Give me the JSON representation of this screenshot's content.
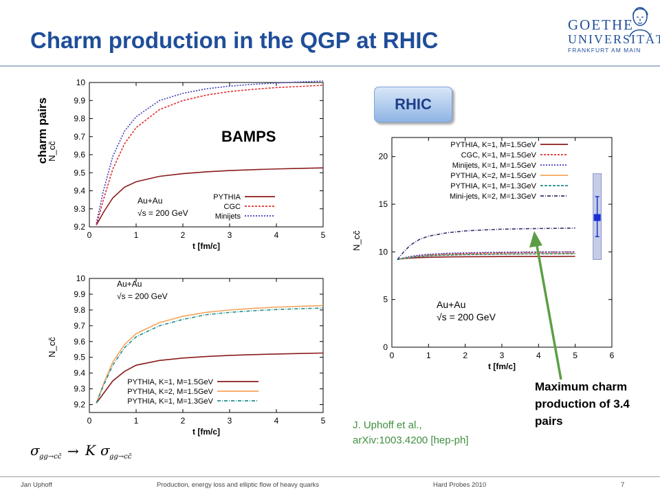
{
  "slide": {
    "title": "Charm production in the QGP at RHIC",
    "logo": {
      "line1": "GOETHE",
      "line2": "UNIVERSITÄT",
      "line3": "FRANKFURT AM MAIN"
    },
    "side_label": "charm pairs",
    "bamps_label": "BAMPS",
    "rhic_badge": "RHIC",
    "annotation": "Maximum charm production of 3.4 pairs",
    "reference_line1": "J. Uphoff et al.,",
    "reference_line2": "arXiv:1003.4200 [hep-ph]",
    "footer": {
      "author": "Jan Uphoff",
      "talk": "Production, energy loss and elliptic flow of heavy quarks",
      "conference": "Hard Probes 2010",
      "page": "7"
    },
    "colors": {
      "title": "#1f4e99",
      "reference": "#3f8f3f",
      "arrow": "#5c9e45"
    }
  },
  "chart_data": [
    {
      "type": "line",
      "xlabel": "t [fm/c]",
      "ylabel": "N_cc̄",
      "xlim": [
        0,
        5
      ],
      "ylim": [
        9.2,
        10
      ],
      "xticks": [
        "0",
        "1",
        "2",
        "3",
        "4",
        "5"
      ],
      "yticks": [
        "9.2",
        "9.3",
        "9.4",
        "9.5",
        "9.6",
        "9.7",
        "9.8",
        "9.9",
        "10"
      ],
      "annotations": [
        "Au+Au",
        "√s = 200 GeV"
      ],
      "legend_position": "bottom-right",
      "x": [
        0.15,
        0.3,
        0.5,
        0.75,
        1.0,
        1.5,
        2.0,
        2.5,
        3.0,
        3.5,
        4.0,
        4.5,
        5.0
      ],
      "series": [
        {
          "name": "PYTHIA",
          "color": "#8b1a1a",
          "dash": "",
          "values": [
            9.21,
            9.28,
            9.36,
            9.42,
            9.45,
            9.48,
            9.495,
            9.505,
            9.512,
            9.517,
            9.521,
            9.524,
            9.527
          ]
        },
        {
          "name": "CGC",
          "color": "#e32b2b",
          "dash": "3,2",
          "values": [
            9.21,
            9.35,
            9.52,
            9.66,
            9.75,
            9.85,
            9.9,
            9.93,
            9.95,
            9.962,
            9.972,
            9.978,
            9.985
          ]
        },
        {
          "name": "Minijets",
          "color": "#3a3ab8",
          "dash": "2,2",
          "values": [
            9.22,
            9.4,
            9.59,
            9.73,
            9.81,
            9.9,
            9.94,
            9.965,
            9.98,
            9.99,
            9.997,
            10.003,
            10.008
          ]
        }
      ]
    },
    {
      "type": "line",
      "xlabel": "t [fm/c]",
      "ylabel": "N_cc̄",
      "xlim": [
        0,
        5
      ],
      "ylim": [
        9.15,
        10
      ],
      "xticks": [
        "0",
        "1",
        "2",
        "3",
        "4",
        "5"
      ],
      "yticks": [
        "9.2",
        "9.3",
        "9.4",
        "9.5",
        "9.6",
        "9.7",
        "9.8",
        "9.9",
        "10"
      ],
      "annotations": [
        "Au+Au",
        "√s = 200 GeV"
      ],
      "legend_position": "bottom-right",
      "x": [
        0.15,
        0.3,
        0.5,
        0.75,
        1.0,
        1.5,
        2.0,
        2.5,
        3.0,
        3.5,
        4.0,
        4.5,
        5.0
      ],
      "series": [
        {
          "name": "PYTHIA, K=1, M=1.5GeV",
          "color": "#8b1a1a",
          "dash": "",
          "values": [
            9.21,
            9.27,
            9.35,
            9.41,
            9.45,
            9.48,
            9.495,
            9.505,
            9.512,
            9.517,
            9.521,
            9.524,
            9.527
          ]
        },
        {
          "name": "PYTHIA, K=2, M=1.5GeV",
          "color": "#f5a35a",
          "dash": "",
          "values": [
            9.21,
            9.33,
            9.47,
            9.58,
            9.65,
            9.72,
            9.76,
            9.785,
            9.8,
            9.81,
            9.818,
            9.823,
            9.828
          ]
        },
        {
          "name": "PYTHIA, K=1, M=1.3GeV",
          "color": "#1e8b8b",
          "dash": "5,2,1,2",
          "values": [
            9.21,
            9.32,
            9.45,
            9.56,
            9.63,
            9.7,
            9.74,
            9.77,
            9.785,
            9.795,
            9.803,
            9.808,
            9.812
          ]
        }
      ]
    },
    {
      "type": "line",
      "xlabel": "t [fm/c]",
      "ylabel": "N_cc̄",
      "xlim": [
        0,
        6
      ],
      "ylim": [
        0,
        22
      ],
      "xticks": [
        "0",
        "1",
        "2",
        "3",
        "4",
        "5",
        "6"
      ],
      "yticks": [
        "0",
        "5",
        "10",
        "15",
        "20"
      ],
      "annotations": [
        "Au+Au",
        "√s = 200 GeV"
      ],
      "legend_position": "top-right",
      "x": [
        0.15,
        0.3,
        0.5,
        0.75,
        1.0,
        1.5,
        2.0,
        2.5,
        3.0,
        3.5,
        4.0,
        4.5,
        5.0
      ],
      "series": [
        {
          "name": "PYTHIA, K=1, M=1.5GeV",
          "color": "#8b1a1a",
          "dash": "",
          "values": [
            9.2,
            9.28,
            9.34,
            9.4,
            9.43,
            9.47,
            9.49,
            9.5,
            9.51,
            9.52,
            9.52,
            9.52,
            9.53
          ]
        },
        {
          "name": "CGC, K=1, M=1.5GeV",
          "color": "#e32b2b",
          "dash": "3,2",
          "values": [
            9.2,
            9.32,
            9.45,
            9.58,
            9.67,
            9.78,
            9.84,
            9.88,
            9.91,
            9.93,
            9.95,
            9.97,
            9.98
          ]
        },
        {
          "name": "Minijets, K=1, M=1.5GeV",
          "color": "#3a3ab8",
          "dash": "2,2",
          "values": [
            9.2,
            9.35,
            9.52,
            9.66,
            9.75,
            9.85,
            9.9,
            9.94,
            9.96,
            9.98,
            9.99,
            10.0,
            10.0
          ]
        },
        {
          "name": "PYTHIA, K=2, M=1.5GeV",
          "color": "#f5a35a",
          "dash": "",
          "values": [
            9.2,
            9.3,
            9.42,
            9.53,
            9.6,
            9.68,
            9.73,
            9.76,
            9.78,
            9.79,
            9.8,
            9.81,
            9.82
          ]
        },
        {
          "name": "PYTHIA, K=1, M=1.3GeV",
          "color": "#1e8b8b",
          "dash": "4,2",
          "values": [
            9.2,
            9.3,
            9.4,
            9.52,
            9.58,
            9.66,
            9.71,
            9.74,
            9.77,
            9.78,
            9.79,
            9.8,
            9.81
          ]
        },
        {
          "name": "Mini-jets, K=2, M=1.3GeV",
          "color": "#30306e",
          "dash": "5,2,1,2",
          "values": [
            9.2,
            9.9,
            10.7,
            11.3,
            11.65,
            12.0,
            12.2,
            12.3,
            12.38,
            12.42,
            12.45,
            12.47,
            12.5
          ]
        }
      ],
      "data_band": {
        "x": 5.6,
        "low": 9.2,
        "high": 18.2,
        "center": 13.6,
        "err_low": 11.6,
        "err_high": 15.8
      }
    }
  ]
}
